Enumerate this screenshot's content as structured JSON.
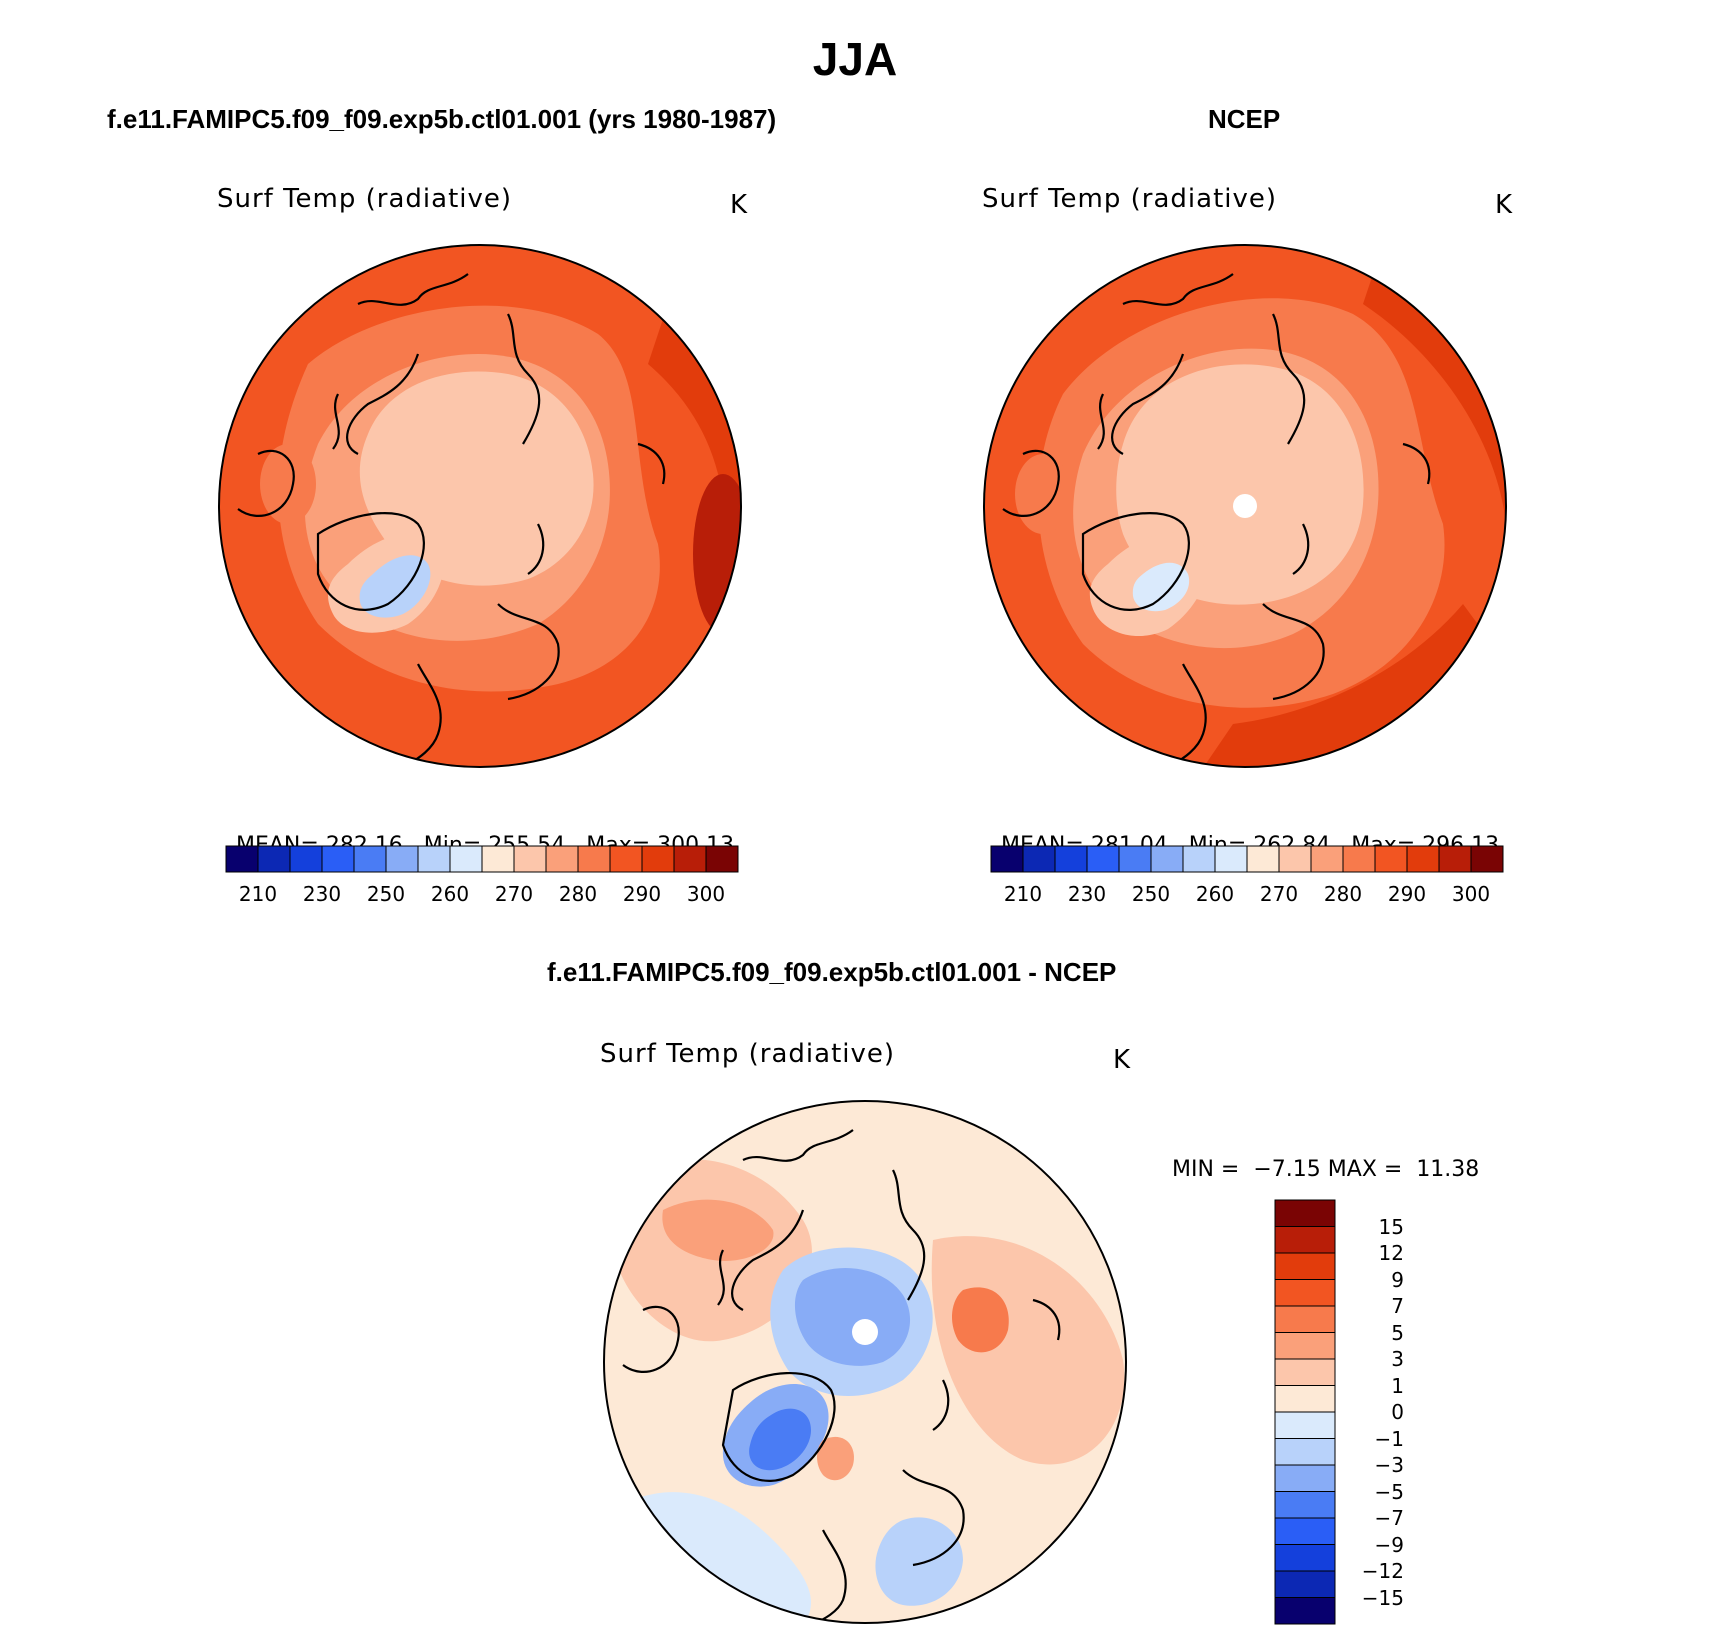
{
  "title": "JJA",
  "panels": {
    "model": {
      "case": "f.e11.FAMIPC5.f09_f09.exp5b.ctl01.001 (yrs 1980-1987)",
      "variable": "Surf Temp (radiative)",
      "units": "K",
      "mean_label": "MEAN=",
      "mean": "282.16",
      "min_label": "Min=",
      "min": "255.54",
      "max_label": "Max=",
      "max": "300.13"
    },
    "obs": {
      "case": "NCEP",
      "variable": "Surf Temp (radiative)",
      "units": "K",
      "mean_label": "MEAN=",
      "mean": "281.04",
      "min_label": "Min=",
      "min": "262.84",
      "max_label": "Max=",
      "max": "296.13"
    },
    "diff": {
      "case": "f.e11.FAMIPC5.f09_f09.exp5b.ctl01.001 - NCEP",
      "variable": "Surf Temp (radiative)",
      "units": "K",
      "min_label": "MIN =",
      "min": "−7.15",
      "max_label": "MAX =",
      "max": "11.38"
    }
  },
  "colorbar_abs": {
    "ticks": [
      "210",
      "230",
      "250",
      "260",
      "270",
      "280",
      "290",
      "300"
    ],
    "colors": [
      "#08006e",
      "#0c28b4",
      "#1440dc",
      "#2a5ef6",
      "#4a7cf4",
      "#88acf6",
      "#b8d2fa",
      "#daeafc",
      "#fde9d6",
      "#fcc6ab",
      "#faa07a",
      "#f77a4c",
      "#f25522",
      "#e23c0c",
      "#b81e08",
      "#7a0404"
    ]
  },
  "colorbar_diff": {
    "ticks": [
      "15",
      "12",
      "9",
      "7",
      "5",
      "3",
      "1",
      "0",
      "−1",
      "−3",
      "−5",
      "−7",
      "−9",
      "−12",
      "−15"
    ],
    "colors": [
      "#7a0404",
      "#b81e08",
      "#e23c0c",
      "#f25522",
      "#f77a4c",
      "#faa07a",
      "#fcc6ab",
      "#fde9d6",
      "#daeafc",
      "#b8d2fa",
      "#88acf6",
      "#4a7cf4",
      "#2a5ef6",
      "#1440dc",
      "#0c28b4",
      "#08006e"
    ]
  }
}
